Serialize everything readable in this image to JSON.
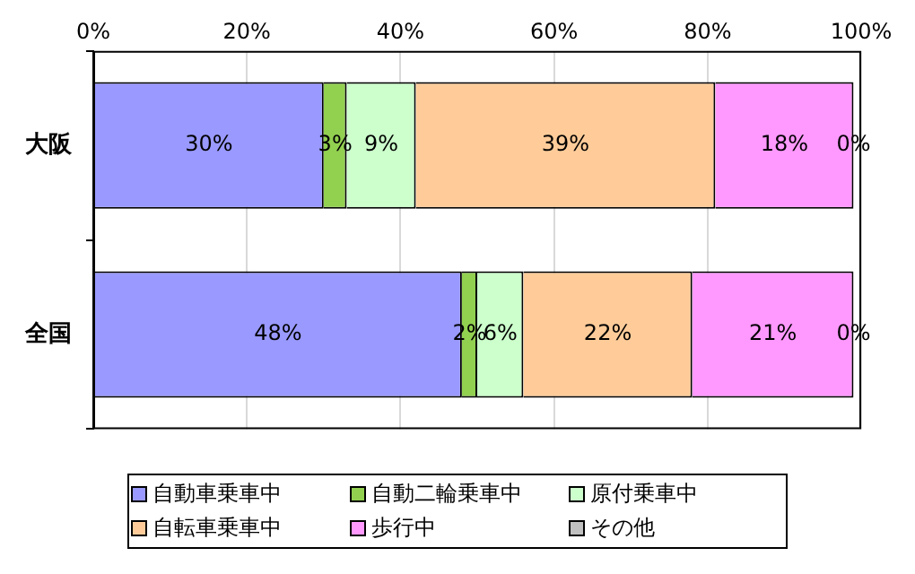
{
  "chart_data": {
    "type": "bar",
    "orientation": "horizontal",
    "stacked": true,
    "categories": [
      "大阪",
      "全国"
    ],
    "series": [
      {
        "name": "自動車乗車中",
        "color": "#9999ff",
        "values": [
          30,
          48
        ],
        "value_labels": [
          "30%",
          "48%"
        ]
      },
      {
        "name": "自動二輪乗車中",
        "color": "#92d050",
        "values": [
          3,
          2
        ],
        "value_labels": [
          "3%",
          "2%"
        ]
      },
      {
        "name": "原付乗車中",
        "color": "#ccffcc",
        "values": [
          9,
          6
        ],
        "value_labels": [
          "9%",
          "6%"
        ]
      },
      {
        "name": "自転車乗車中",
        "color": "#ffcc99",
        "values": [
          39,
          22
        ],
        "value_labels": [
          "39%",
          "22%"
        ]
      },
      {
        "name": "歩行中",
        "color": "#ff99ff",
        "values": [
          18,
          21
        ],
        "value_labels": [
          "18%",
          "21%"
        ]
      },
      {
        "name": "その他",
        "color": "#c0c0c0",
        "values": [
          0,
          0
        ],
        "value_labels": [
          "0%",
          "0%"
        ]
      }
    ],
    "xlim": [
      0,
      100
    ],
    "xticks": [
      {
        "value": 0,
        "label": "0%"
      },
      {
        "value": 20,
        "label": "20%"
      },
      {
        "value": 40,
        "label": "40%"
      },
      {
        "value": 60,
        "label": "60%"
      },
      {
        "value": 80,
        "label": "80%"
      },
      {
        "value": 100,
        "label": "100%"
      }
    ],
    "grid": "x",
    "legend": "bottom"
  }
}
